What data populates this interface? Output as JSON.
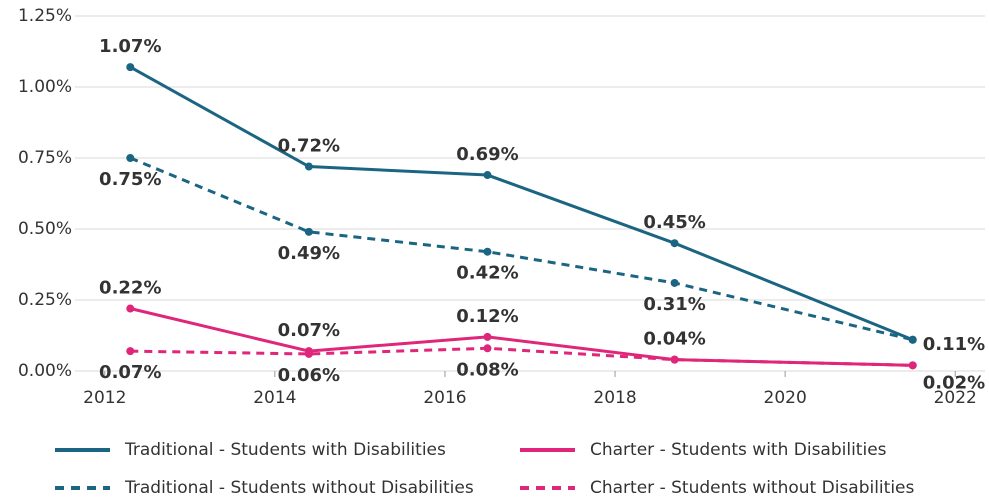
{
  "chart_data": {
    "type": "line",
    "x": [
      2012.3,
      2014.4,
      2016.5,
      2018.7,
      2021.5
    ],
    "series": [
      {
        "name": "Traditional - Students with Disabilities",
        "color": "#1b6583",
        "dash": false,
        "values": [
          1.07,
          0.72,
          0.69,
          0.45,
          0.11
        ],
        "value_labels": [
          "1.07%",
          "0.72%",
          "0.69%",
          "0.45%",
          "0.11%"
        ]
      },
      {
        "name": "Charter - Students with Disabilities",
        "color": "#e0267a",
        "dash": false,
        "values": [
          0.22,
          0.07,
          0.12,
          0.04,
          0.02
        ],
        "value_labels": [
          "0.22%",
          "0.07%",
          "0.12%",
          "0.04%",
          "0.02%"
        ]
      },
      {
        "name": "Traditional - Students without Disabilities",
        "color": "#1b6583",
        "dash": true,
        "values": [
          0.75,
          0.49,
          0.42,
          0.31,
          0.11
        ],
        "value_labels": [
          "0.75%",
          "0.49%",
          "0.42%",
          "0.31%",
          null
        ]
      },
      {
        "name": "Charter - Students without Disabilities",
        "color": "#e0267a",
        "dash": true,
        "values": [
          0.07,
          0.06,
          0.08,
          0.04,
          0.02
        ],
        "value_labels": [
          "0.07%",
          "0.06%",
          "0.08%",
          null,
          null
        ]
      }
    ],
    "xlim": [
      2011.65,
      2022.35
    ],
    "xticks": [
      2012,
      2014,
      2016,
      2018,
      2020,
      2022
    ],
    "ylim": [
      0,
      1.25
    ],
    "yticks": [
      {
        "value": 0,
        "label": "0.00%"
      },
      {
        "value": 0.25,
        "label": "0.25%"
      },
      {
        "value": 0.5,
        "label": "0.50%"
      },
      {
        "value": 0.75,
        "label": "0.75%"
      },
      {
        "value": 1.0,
        "label": "1.00%"
      },
      {
        "value": 1.25,
        "label": "1.25%"
      }
    ],
    "grid": true,
    "legend": "bottom"
  }
}
